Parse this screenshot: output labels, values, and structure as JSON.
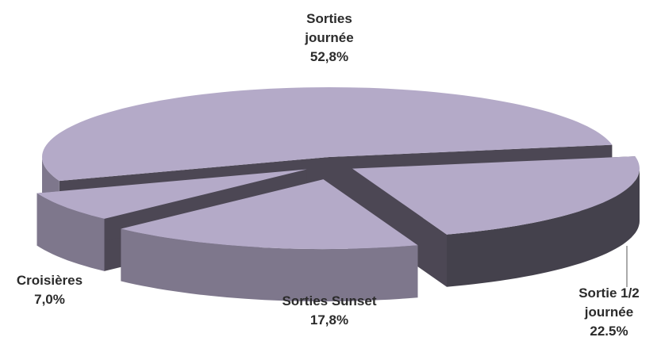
{
  "chart_data": {
    "type": "pie3d",
    "categories": [
      "Sorties journée",
      "Sortie 1/2 journée",
      "Sorties Sunset",
      "Croisières"
    ],
    "values": [
      52.8,
      22.5,
      17.8,
      7.0
    ],
    "value_labels": [
      "52,8%",
      "22.5%",
      "17,8%",
      "7,0%"
    ],
    "color": "#b4aac8"
  }
}
